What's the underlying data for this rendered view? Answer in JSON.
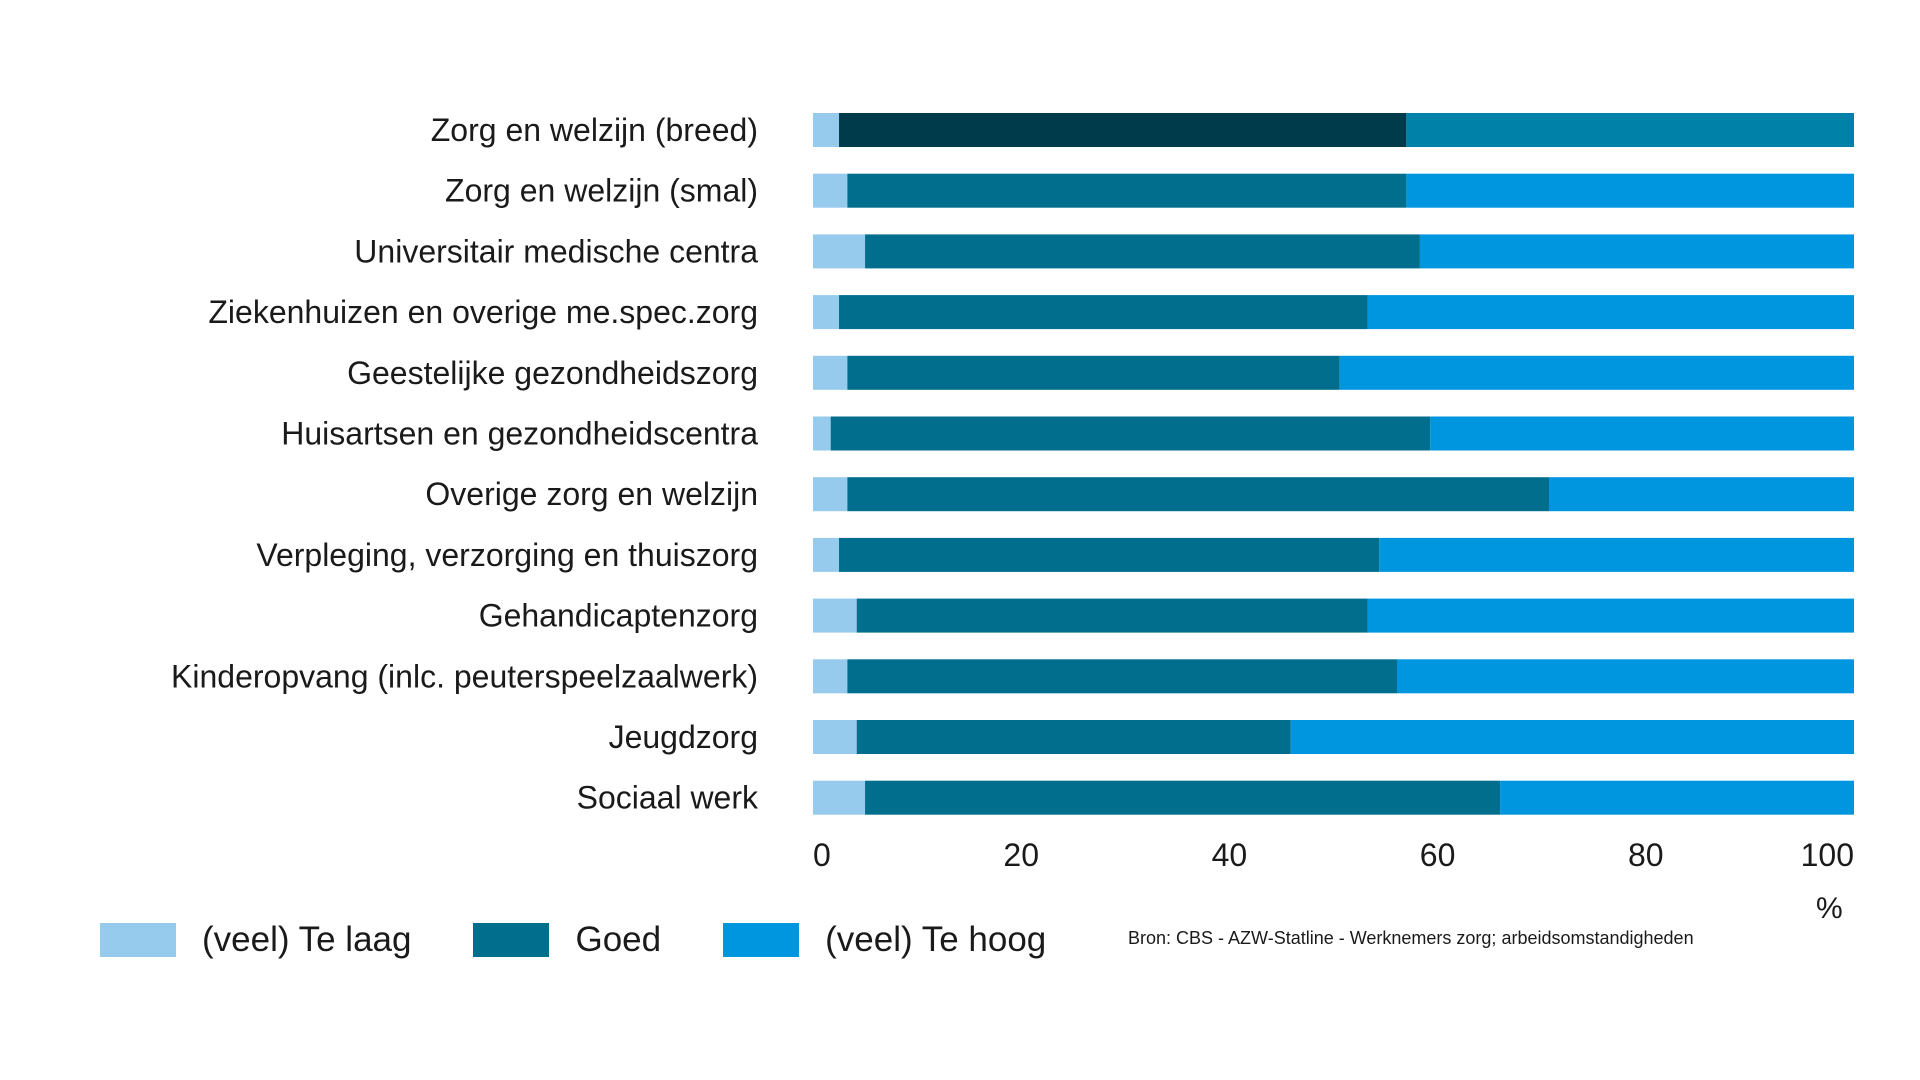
{
  "chart_data": {
    "type": "bar",
    "orientation": "horizontal",
    "stacked": true,
    "unit": "%",
    "xlim": [
      0,
      100
    ],
    "x_ticks": [
      0,
      20,
      40,
      60,
      80,
      100
    ],
    "grid": false,
    "legend_position": "bottom-left",
    "categories": [
      "Zorg en welzijn (breed)",
      "Zorg en welzijn (smal)",
      "Universitair medische centra",
      "Ziekenhuizen en overige me.spec.zorg",
      "Geestelijke gezondheidszorg",
      "Huisartsen en gezondheidscentra",
      "Overige zorg en welzijn",
      "Verpleging, verzorging en thuiszorg",
      "Gehandicaptenzorg",
      "Kinderopvang (inlc. peuterspeelzaalwerk)",
      "Jeugdzorg",
      "Sociaal werk"
    ],
    "series": [
      {
        "name": "(veel) Te laag",
        "color": "#96cbee",
        "values": [
          2.5,
          3.3,
          5.0,
          2.5,
          3.3,
          1.7,
          3.3,
          2.5,
          4.2,
          3.3,
          4.2,
          5.0
        ]
      },
      {
        "name": "Goed",
        "color": "#006e8c",
        "values": [
          54.5,
          53.7,
          53.3,
          50.8,
          47.3,
          57.6,
          67.4,
          51.9,
          49.1,
          52.8,
          41.7,
          61.0
        ]
      },
      {
        "name": "(veel) Te hoog",
        "color": "#0096df",
        "values": [
          43.0,
          43.0,
          41.7,
          46.7,
          49.4,
          40.7,
          29.3,
          45.6,
          46.7,
          43.9,
          54.1,
          34.0
        ]
      }
    ],
    "highlight": {
      "category_index": 0,
      "colors": [
        "#96cbee",
        "#003b4c",
        "#0082a8"
      ]
    }
  },
  "source": "Bron: CBS - AZW-Statline - Werknemers zorg; arbeidsomstandigheden"
}
